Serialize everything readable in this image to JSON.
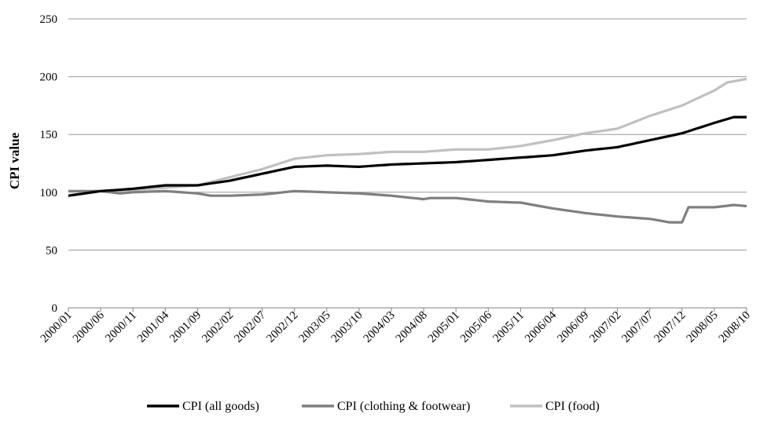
{
  "chart_data": {
    "type": "line",
    "ylabel": "CPI value",
    "xlabel": "",
    "title": "",
    "ylim": [
      0,
      250
    ],
    "yticks": [
      0,
      50,
      100,
      150,
      200,
      250
    ],
    "grid": "horizontal",
    "legend_position": "bottom",
    "x_tick_labels": [
      "2000/01",
      "2000/06",
      "2000/11",
      "2001/04",
      "2001/09",
      "2002/02",
      "2002/07",
      "2002/12",
      "2003/05",
      "2003/10",
      "2004/03",
      "2004/08",
      "2005/01",
      "2005/06",
      "2005/11",
      "2006/04",
      "2006/09",
      "2007/02",
      "2007/07",
      "2007/12",
      "2008/05",
      "2008/10"
    ],
    "x_start": "2000/01",
    "x_end": "2008/10",
    "series": [
      {
        "name": "CPI (all goods)",
        "color": "#000000",
        "anchors": [
          [
            "2000/01",
            97
          ],
          [
            "2000/06",
            101
          ],
          [
            "2000/11",
            103
          ],
          [
            "2001/04",
            106
          ],
          [
            "2001/09",
            106
          ],
          [
            "2002/02",
            110
          ],
          [
            "2002/07",
            116
          ],
          [
            "2002/12",
            122
          ],
          [
            "2003/05",
            123
          ],
          [
            "2003/10",
            122
          ],
          [
            "2004/03",
            124
          ],
          [
            "2004/08",
            125
          ],
          [
            "2005/01",
            126
          ],
          [
            "2005/06",
            128
          ],
          [
            "2005/11",
            130
          ],
          [
            "2006/04",
            132
          ],
          [
            "2006/09",
            136
          ],
          [
            "2007/02",
            139
          ],
          [
            "2007/07",
            145
          ],
          [
            "2007/12",
            151
          ],
          [
            "2008/05",
            160
          ],
          [
            "2008/08",
            165
          ],
          [
            "2008/10",
            165
          ]
        ]
      },
      {
        "name": "CPI (clothing & footwear)",
        "color": "#7f7f7f",
        "anchors": [
          [
            "2000/01",
            101
          ],
          [
            "2000/06",
            101
          ],
          [
            "2000/09",
            99
          ],
          [
            "2000/11",
            100
          ],
          [
            "2001/04",
            101
          ],
          [
            "2001/09",
            99
          ],
          [
            "2001/11",
            97
          ],
          [
            "2002/02",
            97
          ],
          [
            "2002/07",
            98
          ],
          [
            "2002/12",
            101
          ],
          [
            "2003/05",
            100
          ],
          [
            "2003/10",
            99
          ],
          [
            "2004/03",
            97
          ],
          [
            "2004/08",
            94
          ],
          [
            "2004/09",
            95
          ],
          [
            "2005/01",
            95
          ],
          [
            "2005/06",
            92
          ],
          [
            "2005/11",
            91
          ],
          [
            "2006/04",
            86
          ],
          [
            "2006/09",
            82
          ],
          [
            "2007/02",
            79
          ],
          [
            "2007/07",
            77
          ],
          [
            "2007/10",
            74
          ],
          [
            "2007/12",
            74
          ],
          [
            "2008/01",
            87
          ],
          [
            "2008/05",
            87
          ],
          [
            "2008/08",
            89
          ],
          [
            "2008/10",
            88
          ]
        ]
      },
      {
        "name": "CPI (food)",
        "color": "#c0c0c0",
        "anchors": [
          [
            "2000/01",
            97
          ],
          [
            "2000/06",
            101
          ],
          [
            "2000/11",
            102
          ],
          [
            "2001/04",
            104
          ],
          [
            "2001/09",
            106
          ],
          [
            "2002/02",
            113
          ],
          [
            "2002/07",
            120
          ],
          [
            "2002/12",
            129
          ],
          [
            "2003/05",
            132
          ],
          [
            "2003/10",
            133
          ],
          [
            "2004/03",
            135
          ],
          [
            "2004/08",
            135
          ],
          [
            "2005/01",
            137
          ],
          [
            "2005/06",
            137
          ],
          [
            "2005/11",
            140
          ],
          [
            "2006/04",
            145
          ],
          [
            "2006/09",
            151
          ],
          [
            "2007/02",
            155
          ],
          [
            "2007/07",
            166
          ],
          [
            "2007/12",
            175
          ],
          [
            "2008/05",
            188
          ],
          [
            "2008/07",
            195
          ],
          [
            "2008/10",
            198
          ]
        ]
      }
    ]
  }
}
